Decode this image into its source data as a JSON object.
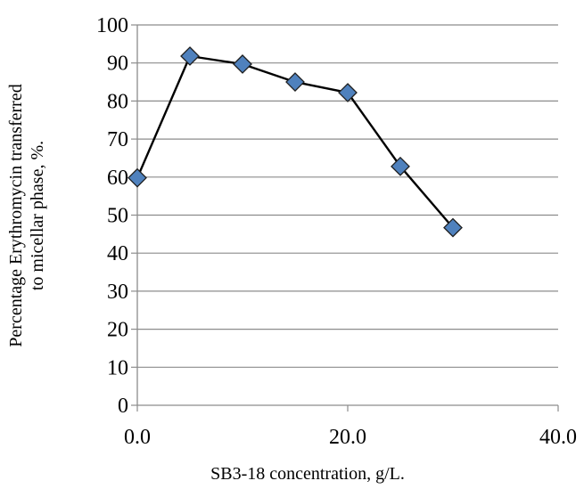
{
  "chart_data": {
    "type": "line",
    "title": "",
    "xlabel": "SB3-18 concentration, g/L.",
    "ylabel_lines": [
      "Percentage  Erythromycin transferred",
      "to micellar phase, %."
    ],
    "xlim": [
      0,
      40
    ],
    "ylim": [
      0,
      100
    ],
    "x_ticks": [
      0,
      20,
      40
    ],
    "x_tick_labels": [
      "0.0",
      "20.0",
      "40.0"
    ],
    "y_ticks": [
      0,
      10,
      20,
      30,
      40,
      50,
      60,
      70,
      80,
      90,
      100
    ],
    "y_tick_labels": [
      "0",
      "10",
      "20",
      "30",
      "40",
      "50",
      "60",
      "70",
      "80",
      "90",
      "100"
    ],
    "grid": "horizontal",
    "legend": "none",
    "marker": "diamond",
    "series": [
      {
        "x": [
          0,
          5,
          10,
          15,
          20,
          25,
          30
        ],
        "y": [
          59.8,
          91.8,
          89.7,
          85.0,
          82.2,
          62.8,
          46.7
        ],
        "color": "#4F81BD",
        "line_color": "#000000"
      }
    ]
  }
}
